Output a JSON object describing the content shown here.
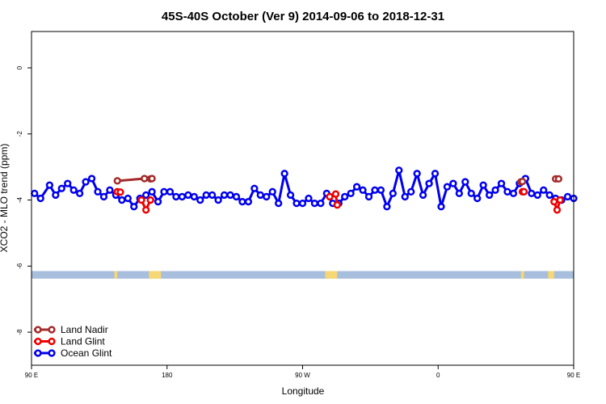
{
  "chart_data": {
    "type": "line",
    "title": "45S-40S October (Ver 9)   2014-09-06 to 2018-12-31",
    "xlabel": "Longitude",
    "ylabel": "XCO2 - MLO trend (ppm)",
    "xlim": [
      90,
      450
    ],
    "ylim": [
      -9,
      1.1
    ],
    "x_ticks": [
      {
        "value": 90,
        "label": "90 E"
      },
      {
        "value": 180,
        "label": "180"
      },
      {
        "value": 270,
        "label": "90 W"
      },
      {
        "value": 360,
        "label": "0"
      },
      {
        "value": 450,
        "label": "90 E"
      },
      {
        "value": 540,
        "label": "180"
      }
    ],
    "y_ticks": [
      {
        "value": 0,
        "label": "0"
      },
      {
        "value": -2,
        "label": "-2"
      },
      {
        "value": -4,
        "label": "-4"
      },
      {
        "value": -6,
        "label": "-6"
      },
      {
        "value": -8,
        "label": "-8"
      }
    ],
    "grid": false,
    "legend_position": "bottom-left",
    "land_strip": {
      "y_range": [
        -6.15,
        -6.38
      ],
      "ocean_color": "#a8bedd",
      "land_color": "#f7d774",
      "land_x_ranges": [
        [
          145,
          147
        ],
        [
          168,
          176
        ],
        [
          285,
          293
        ],
        [
          415,
          417
        ],
        [
          433,
          437
        ]
      ]
    },
    "series": [
      {
        "name": "Land Nadir",
        "color": "#a52a2a",
        "segments": [
          {
            "x": [
              147,
              165
            ],
            "y": [
              -3.42,
              -3.35
            ]
          },
          {
            "x": [
              169,
              170
            ],
            "y": [
              -3.36,
              -3.35
            ]
          },
          {
            "x": [
              415,
              416
            ],
            "y": [
              -3.45,
              -3.44
            ]
          },
          {
            "x": [
              438,
              440
            ],
            "y": [
              -3.36,
              -3.36
            ]
          }
        ]
      },
      {
        "name": "Land Glint",
        "color": "#ee0000",
        "segments": [
          {
            "x": [
              147,
              149
            ],
            "y": [
              -3.75,
              -3.76
            ]
          },
          {
            "x": [
              163,
              166,
              169
            ],
            "y": [
              -4.0,
              -4.3,
              -4.0
            ]
          },
          {
            "x": [
              288,
              292,
              293
            ],
            "y": [
              -3.9,
              -3.82,
              -4.15
            ]
          },
          {
            "x": [
              416,
              417
            ],
            "y": [
              -3.75,
              -3.75
            ]
          },
          {
            "x": [
              437,
              439,
              441
            ],
            "y": [
              -4.05,
              -4.3,
              -4.0
            ]
          }
        ]
      },
      {
        "name": "Ocean Glint",
        "color": "#0000ee",
        "segments": [
          {
            "x": [
              92,
              96,
              102,
              106,
              110,
              114,
              118,
              122,
              126,
              130,
              134,
              138,
              142,
              146,
              150,
              154,
              158,
              162,
              166,
              170,
              174,
              178,
              182,
              186,
              190,
              194,
              198,
              202,
              206,
              210,
              214,
              218,
              222,
              226,
              230,
              234,
              238,
              242,
              246,
              250,
              254,
              258,
              262,
              266,
              270,
              274,
              278,
              282,
              286,
              290,
              294,
              298,
              302,
              306,
              310,
              314,
              318,
              322,
              326,
              330,
              334,
              338,
              342,
              346,
              350,
              354,
              358,
              362,
              366,
              370,
              374,
              378,
              382,
              386,
              390,
              394,
              398,
              402,
              406,
              410,
              414,
              418,
              422,
              426,
              430,
              434,
              438,
              442,
              446,
              450
            ],
            "y": [
              -3.8,
              -3.95,
              -3.55,
              -3.85,
              -3.65,
              -3.5,
              -3.7,
              -3.8,
              -3.45,
              -3.35,
              -3.75,
              -3.9,
              -3.7,
              -3.85,
              -4.0,
              -3.95,
              -4.2,
              -3.95,
              -3.85,
              -3.75,
              -4.05,
              -3.75,
              -3.75,
              -3.9,
              -3.9,
              -3.85,
              -3.9,
              -4.0,
              -3.85,
              -3.85,
              -4.0,
              -3.85,
              -3.85,
              -3.9,
              -4.05,
              -4.05,
              -3.65,
              -3.85,
              -3.9,
              -3.75,
              -4.1,
              -3.2,
              -3.85,
              -4.1,
              -4.1,
              -3.95,
              -4.1,
              -4.1,
              -3.8,
              -4.1,
              -4.1,
              -3.9,
              -3.8,
              -3.6,
              -3.7,
              -3.9,
              -3.7,
              -3.7,
              -4.2,
              -3.8,
              -3.1,
              -3.9,
              -3.75,
              -3.2,
              -3.85,
              -3.5,
              -3.2,
              -4.2,
              -3.6,
              -3.5,
              -3.8,
              -3.45,
              -3.8,
              -3.95,
              -3.55,
              -3.85,
              -3.7,
              -3.5,
              -3.75,
              -3.8,
              -3.5,
              -3.35,
              -3.8,
              -3.85,
              -3.7,
              -3.85,
              -3.95,
              -4.0,
              -3.9,
              -3.95
            ]
          }
        ]
      }
    ]
  }
}
